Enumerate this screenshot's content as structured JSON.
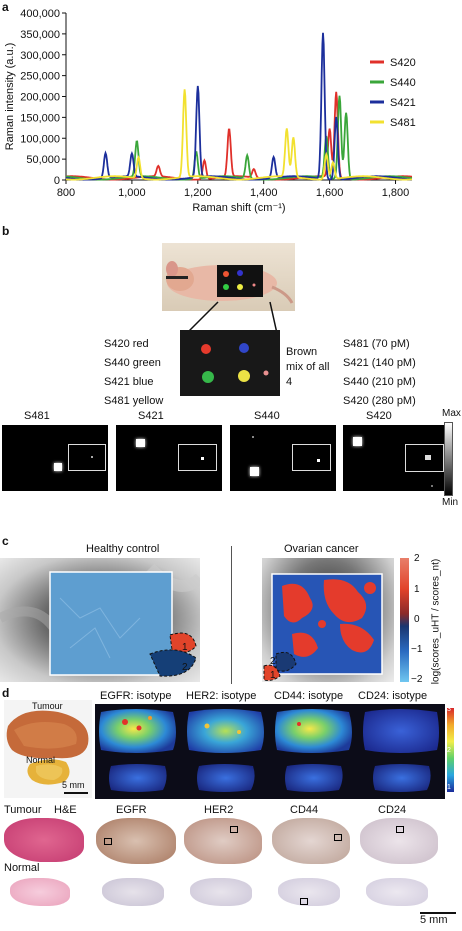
{
  "panels": {
    "a": "a",
    "b": "b",
    "c": "c",
    "d": "d"
  },
  "chart_data": {
    "type": "line",
    "xlabel": "Raman shift (cm⁻¹)",
    "ylabel": "Raman intensity (a.u.)",
    "xlim": [
      800,
      1850
    ],
    "ylim": [
      0,
      400000
    ],
    "xticks": [
      800,
      1000,
      1200,
      1400,
      1600,
      1800
    ],
    "xticklabels": [
      "800",
      "1,000",
      "1,200",
      "1,400",
      "1,600",
      "1,800"
    ],
    "yticks": [
      0,
      50000,
      100000,
      150000,
      200000,
      250000,
      300000,
      350000,
      400000
    ],
    "yticklabels": [
      "0",
      "50,000",
      "100,000",
      "150,000",
      "200,000",
      "250,000",
      "300,000",
      "350,000",
      "400,000"
    ],
    "legend_position": "right",
    "series": [
      {
        "name": "S420",
        "color": "#e0302a",
        "peaks": [
          [
            1080,
            25000
          ],
          [
            1220,
            45000
          ],
          [
            1295,
            115000
          ],
          [
            1370,
            20000
          ],
          [
            1600,
            115000
          ],
          [
            1620,
            205000
          ]
        ]
      },
      {
        "name": "S440",
        "color": "#3aa63a",
        "peaks": [
          [
            1015,
            85000
          ],
          [
            1195,
            65000
          ],
          [
            1350,
            55000
          ],
          [
            1590,
            100000
          ],
          [
            1630,
            200000
          ],
          [
            1650,
            160000
          ]
        ]
      },
      {
        "name": "S421",
        "color": "#1c2f9c",
        "peaks": [
          [
            920,
            60000
          ],
          [
            1000,
            55000
          ],
          [
            1200,
            218000
          ],
          [
            1430,
            50000
          ],
          [
            1580,
            350000
          ],
          [
            1620,
            150000
          ]
        ]
      },
      {
        "name": "S481",
        "color": "#f2e130",
        "peaks": [
          [
            1020,
            50000
          ],
          [
            1160,
            210000
          ],
          [
            1470,
            115000
          ],
          [
            1490,
            95000
          ],
          [
            1590,
            60000
          ],
          [
            1610,
            40000
          ]
        ]
      }
    ]
  },
  "b": {
    "left_labels": [
      "S420 red",
      "S440 green",
      "S421 blue",
      "S481 yellow"
    ],
    "center_label": "Brown mix of all 4",
    "right_labels": [
      "S481 (70 pM)",
      "S421 (140 pM)",
      "S440 (210 pM)",
      "S420 (280 pM)"
    ],
    "images": [
      "S481",
      "S421",
      "S440",
      "S420"
    ],
    "scale_max": "Max",
    "scale_min": "Min"
  },
  "c": {
    "left_title": "Healthy control",
    "right_title": "Ovarian cancer",
    "ticks": [
      "2",
      "1",
      "0",
      "−1",
      "−2"
    ],
    "colorbar_label": "log(scores_uHT / scores_nt)",
    "region_labels_left": [
      "1",
      "2"
    ],
    "region_labels_right": [
      "2",
      "1"
    ]
  },
  "d": {
    "photo_tumour": "Tumour",
    "photo_normal": "Normal",
    "photo_scale": "5 mm",
    "headers": [
      "EGFR: isotype",
      "HER2: isotype",
      "CD44: isotype",
      "CD24: isotype"
    ],
    "colorbar_ticks": [
      "3",
      "2",
      "1"
    ],
    "row2_tumour": "Tumour",
    "row2_he": "H&E",
    "row2_normal": "Normal",
    "row2_headers": [
      "EGFR",
      "HER2",
      "CD44",
      "CD24"
    ],
    "bottom_scale": "5 mm"
  }
}
